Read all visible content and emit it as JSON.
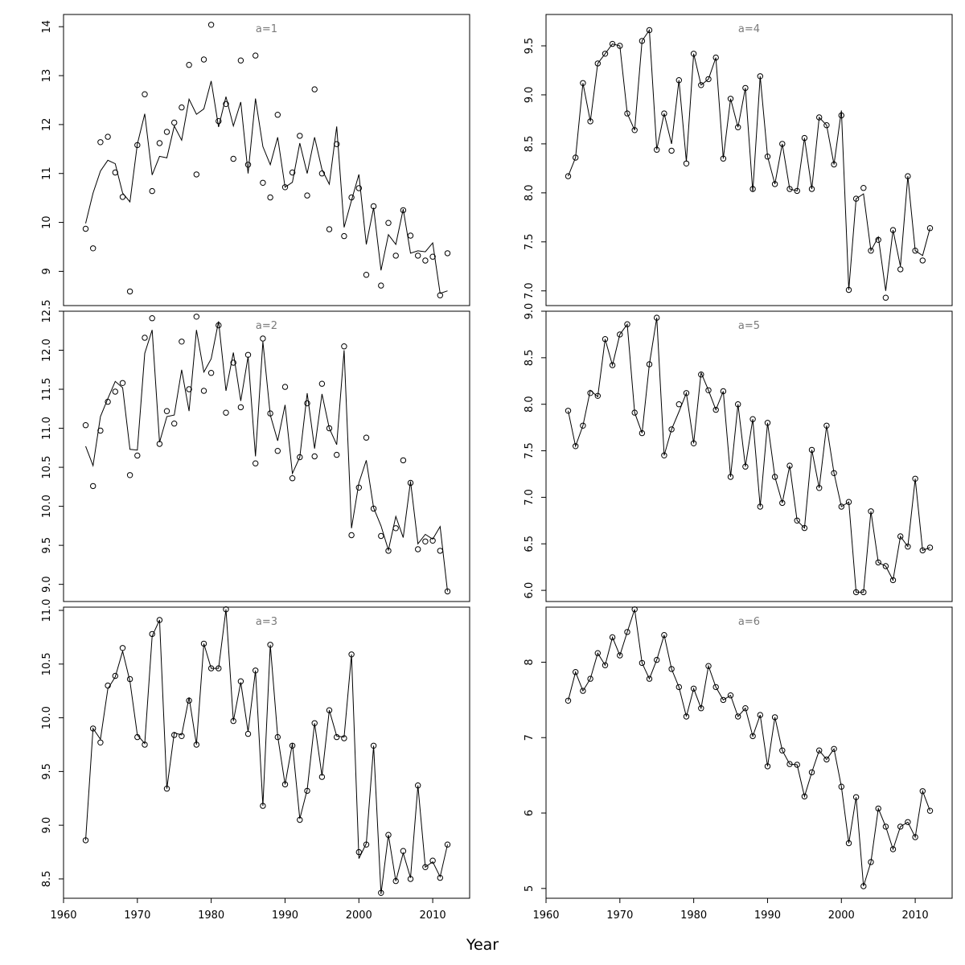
{
  "figure": {
    "xlabel": "Year"
  },
  "chart_data": [
    {
      "type": "scatter",
      "panel_label": "a=1",
      "xlabel": "Year",
      "xlim": [
        1960,
        2015
      ],
      "xticks": [
        1960,
        1970,
        1980,
        1990,
        2000,
        2010
      ],
      "ylim": [
        8.3,
        14.25
      ],
      "yticks": [
        9,
        10,
        11,
        12,
        13,
        14
      ],
      "x": [
        1963,
        1964,
        1965,
        1966,
        1967,
        1968,
        1969,
        1970,
        1971,
        1972,
        1973,
        1974,
        1975,
        1976,
        1977,
        1978,
        1979,
        1980,
        1981,
        1982,
        1983,
        1984,
        1985,
        1986,
        1987,
        1988,
        1989,
        1990,
        1991,
        1992,
        1993,
        1994,
        1995,
        1996,
        1997,
        1998,
        1999,
        2000,
        2001,
        2002,
        2003,
        2004,
        2005,
        2006,
        2007,
        2008,
        2009,
        2010,
        2011,
        2012
      ],
      "series": [
        {
          "marker": "circle",
          "values": [
            9.87,
            9.47,
            11.64,
            11.75,
            11.02,
            10.52,
            8.59,
            11.58,
            12.62,
            10.64,
            11.62,
            11.85,
            12.04,
            12.35,
            13.22,
            10.98,
            13.33,
            14.04,
            12.07,
            12.42,
            11.3,
            13.31,
            11.18,
            13.41,
            10.81,
            10.51,
            12.2,
            10.72,
            11.02,
            11.77,
            10.55,
            12.72,
            11.0,
            9.86,
            11.6,
            9.72,
            10.51,
            10.7,
            8.93,
            10.33,
            8.71,
            9.99,
            9.32,
            10.25,
            9.73,
            9.32,
            9.22,
            9.3,
            8.51,
            9.37
          ]
        },
        {
          "marker": "line",
          "values": [
            9.98,
            10.6,
            11.05,
            11.27,
            11.2,
            10.6,
            10.42,
            11.6,
            12.22,
            10.97,
            11.35,
            11.32,
            11.97,
            11.68,
            12.52,
            12.21,
            12.32,
            12.89,
            11.95,
            12.57,
            11.97,
            12.46,
            11.0,
            12.53,
            11.55,
            11.18,
            11.74,
            10.72,
            10.82,
            11.62,
            11.0,
            11.74,
            11.08,
            10.78,
            11.96,
            9.9,
            10.45,
            10.98,
            9.55,
            10.3,
            9.02,
            9.75,
            9.55,
            10.27,
            9.37,
            9.42,
            9.4,
            9.58,
            8.55,
            8.6
          ]
        }
      ]
    },
    {
      "type": "scatter",
      "panel_label": "a=2",
      "xlabel": "Year",
      "xlim": [
        1960,
        2015
      ],
      "xticks": [
        1960,
        1970,
        1980,
        1990,
        2000,
        2010
      ],
      "ylim": [
        8.78,
        12.5
      ],
      "yticks": [
        9.0,
        9.5,
        10.0,
        10.5,
        11.0,
        11.5,
        12.0,
        12.5
      ],
      "x": [
        1963,
        1964,
        1965,
        1966,
        1967,
        1968,
        1969,
        1970,
        1971,
        1972,
        1973,
        1974,
        1975,
        1976,
        1977,
        1978,
        1979,
        1980,
        1981,
        1982,
        1983,
        1984,
        1985,
        1986,
        1987,
        1988,
        1989,
        1990,
        1991,
        1992,
        1993,
        1994,
        1995,
        1996,
        1997,
        1998,
        1999,
        2000,
        2001,
        2002,
        2003,
        2004,
        2005,
        2006,
        2007,
        2008,
        2009,
        2010,
        2011,
        2012
      ],
      "series": [
        {
          "marker": "circle",
          "values": [
            11.04,
            10.26,
            10.97,
            11.34,
            11.47,
            11.58,
            10.4,
            10.65,
            12.16,
            12.41,
            10.8,
            11.22,
            11.06,
            12.11,
            11.5,
            12.43,
            11.48,
            11.71,
            12.32,
            11.2,
            11.84,
            11.27,
            11.94,
            10.55,
            12.15,
            11.19,
            10.71,
            11.53,
            10.36,
            10.63,
            11.32,
            10.64,
            11.57,
            11.0,
            10.66,
            12.05,
            9.63,
            10.24,
            10.88,
            9.97,
            9.62,
            9.43,
            9.72,
            10.59,
            10.3,
            9.45,
            9.55,
            9.56,
            9.43,
            8.91
          ]
        },
        {
          "marker": "line",
          "values": [
            10.77,
            10.52,
            11.15,
            11.38,
            11.6,
            11.52,
            10.73,
            10.72,
            11.96,
            12.26,
            10.82,
            11.15,
            11.17,
            11.75,
            11.22,
            12.26,
            11.72,
            11.89,
            12.37,
            11.48,
            11.97,
            11.35,
            11.92,
            10.64,
            12.11,
            11.17,
            10.84,
            11.3,
            10.42,
            10.63,
            11.45,
            10.74,
            11.44,
            11.0,
            10.79,
            12.0,
            9.72,
            10.3,
            10.59,
            9.98,
            9.75,
            9.44,
            9.87,
            9.6,
            10.32,
            9.52,
            9.64,
            9.58,
            9.74,
            8.91
          ]
        }
      ]
    },
    {
      "type": "scatter",
      "panel_label": "a=3",
      "xlabel": "Year",
      "xlim": [
        1960,
        2015
      ],
      "xticks": [
        1960,
        1970,
        1980,
        1990,
        2000,
        2010
      ],
      "ylim": [
        8.32,
        11.03
      ],
      "yticks": [
        8.5,
        9.0,
        9.5,
        10.0,
        10.5,
        11.0
      ],
      "x": [
        1963,
        1964,
        1965,
        1966,
        1967,
        1968,
        1969,
        1970,
        1971,
        1972,
        1973,
        1974,
        1975,
        1976,
        1977,
        1978,
        1979,
        1980,
        1981,
        1982,
        1983,
        1984,
        1985,
        1986,
        1987,
        1988,
        1989,
        1990,
        1991,
        1992,
        1993,
        1994,
        1995,
        1996,
        1997,
        1998,
        1999,
        2000,
        2001,
        2002,
        2003,
        2004,
        2005,
        2006,
        2007,
        2008,
        2009,
        2010,
        2011,
        2012
      ],
      "series": [
        {
          "marker": "circle",
          "values": [
            8.86,
            9.9,
            9.77,
            10.3,
            10.39,
            10.65,
            10.36,
            9.82,
            9.75,
            10.78,
            10.91,
            9.34,
            9.84,
            9.83,
            10.16,
            9.75,
            10.69,
            10.46,
            10.46,
            11.01,
            9.97,
            10.34,
            9.85,
            10.44,
            9.18,
            10.68,
            9.82,
            9.38,
            9.74,
            9.05,
            9.32,
            9.95,
            9.45,
            10.07,
            9.82,
            9.81,
            10.59,
            8.75,
            8.82,
            9.74,
            8.37,
            8.91,
            8.48,
            8.76,
            8.5,
            9.37,
            8.61,
            8.67,
            8.51,
            8.82
          ]
        },
        {
          "marker": "line",
          "values": [
            8.86,
            9.9,
            9.8,
            10.27,
            10.38,
            10.62,
            10.34,
            9.84,
            9.76,
            10.76,
            10.91,
            9.34,
            9.86,
            9.84,
            10.19,
            9.75,
            10.69,
            10.46,
            10.46,
            11.01,
            9.97,
            10.33,
            9.87,
            10.44,
            9.18,
            10.68,
            9.83,
            9.38,
            9.76,
            9.06,
            9.33,
            9.95,
            9.46,
            10.07,
            9.83,
            9.82,
            10.59,
            8.69,
            8.83,
            9.74,
            8.36,
            8.91,
            8.48,
            8.74,
            8.51,
            9.37,
            8.61,
            8.66,
            8.52,
            8.82
          ]
        }
      ]
    },
    {
      "type": "scatter",
      "panel_label": "a=4",
      "xlabel": "Year",
      "xlim": [
        1960,
        2015
      ],
      "xticks": [
        1960,
        1970,
        1980,
        1990,
        2000,
        2010
      ],
      "ylim": [
        6.85,
        9.82
      ],
      "yticks": [
        7.0,
        7.5,
        8.0,
        8.5,
        9.0,
        9.5
      ],
      "x": [
        1963,
        1964,
        1965,
        1966,
        1967,
        1968,
        1969,
        1970,
        1971,
        1972,
        1973,
        1974,
        1975,
        1976,
        1977,
        1978,
        1979,
        1980,
        1981,
        1982,
        1983,
        1984,
        1985,
        1986,
        1987,
        1988,
        1989,
        1990,
        1991,
        1992,
        1993,
        1994,
        1995,
        1996,
        1997,
        1998,
        1999,
        2000,
        2001,
        2002,
        2003,
        2004,
        2005,
        2006,
        2007,
        2008,
        2009,
        2010,
        2011,
        2012
      ],
      "series": [
        {
          "marker": "circle",
          "values": [
            8.17,
            8.36,
            9.12,
            8.73,
            9.32,
            9.42,
            9.52,
            9.5,
            8.81,
            8.64,
            9.55,
            9.66,
            8.44,
            8.81,
            8.43,
            9.15,
            8.3,
            9.42,
            9.1,
            9.16,
            9.38,
            8.35,
            8.96,
            8.67,
            9.07,
            8.04,
            9.19,
            8.37,
            8.09,
            8.5,
            8.04,
            8.02,
            8.56,
            8.04,
            8.77,
            8.69,
            8.29,
            8.79,
            7.01,
            7.94,
            8.05,
            7.41,
            7.52,
            6.93,
            7.62,
            7.22,
            8.17,
            7.41,
            7.31,
            7.64
          ]
        },
        {
          "marker": "line",
          "values": [
            8.17,
            8.36,
            9.12,
            8.73,
            9.32,
            9.42,
            9.52,
            9.5,
            8.81,
            8.64,
            9.55,
            9.66,
            8.44,
            8.81,
            8.5,
            9.15,
            8.32,
            9.42,
            9.1,
            9.16,
            9.38,
            8.35,
            8.96,
            8.67,
            9.07,
            8.01,
            9.19,
            8.37,
            8.09,
            8.5,
            8.04,
            8.02,
            8.56,
            8.04,
            8.77,
            8.69,
            8.29,
            8.84,
            7.01,
            7.94,
            7.99,
            7.41,
            7.55,
            7.0,
            7.62,
            7.25,
            8.17,
            7.41,
            7.36,
            7.64
          ]
        }
      ]
    },
    {
      "type": "scatter",
      "panel_label": "a=5",
      "xlabel": "Year",
      "xlim": [
        1960,
        2015
      ],
      "xticks": [
        1960,
        1970,
        1980,
        1990,
        2000,
        2010
      ],
      "ylim": [
        5.88,
        9.0
      ],
      "yticks": [
        6.0,
        6.5,
        7.0,
        7.5,
        8.0,
        8.5,
        9.0
      ],
      "x": [
        1963,
        1964,
        1965,
        1966,
        1967,
        1968,
        1969,
        1970,
        1971,
        1972,
        1973,
        1974,
        1975,
        1976,
        1977,
        1978,
        1979,
        1980,
        1981,
        1982,
        1983,
        1984,
        1985,
        1986,
        1987,
        1988,
        1989,
        1990,
        1991,
        1992,
        1993,
        1994,
        1995,
        1996,
        1997,
        1998,
        1999,
        2000,
        2001,
        2002,
        2003,
        2004,
        2005,
        2006,
        2007,
        2008,
        2009,
        2010,
        2011,
        2012
      ],
      "series": [
        {
          "marker": "circle",
          "values": [
            7.93,
            7.55,
            7.77,
            8.12,
            8.09,
            8.7,
            8.42,
            8.75,
            8.86,
            7.91,
            7.69,
            8.43,
            8.93,
            7.45,
            7.73,
            8.0,
            8.12,
            7.58,
            8.32,
            8.15,
            7.94,
            8.14,
            7.22,
            8.0,
            7.33,
            7.84,
            6.9,
            7.8,
            7.22,
            6.94,
            7.34,
            6.75,
            6.67,
            7.51,
            7.1,
            7.77,
            7.26,
            6.9,
            6.95,
            5.98,
            5.98,
            6.85,
            6.3,
            6.26,
            6.11,
            6.58,
            6.47,
            7.2,
            6.43,
            6.46
          ]
        },
        {
          "marker": "line",
          "values": [
            7.93,
            7.55,
            7.77,
            8.15,
            8.08,
            8.7,
            8.42,
            8.75,
            8.86,
            7.91,
            7.69,
            8.43,
            8.93,
            7.45,
            7.73,
            7.92,
            8.12,
            7.58,
            8.34,
            8.15,
            7.94,
            8.14,
            7.22,
            8.0,
            7.33,
            7.84,
            6.9,
            7.8,
            7.22,
            6.94,
            7.34,
            6.75,
            6.67,
            7.51,
            7.1,
            7.77,
            7.26,
            6.9,
            6.95,
            5.98,
            5.98,
            6.85,
            6.3,
            6.26,
            6.11,
            6.58,
            6.47,
            7.2,
            6.43,
            6.46
          ]
        }
      ]
    },
    {
      "type": "scatter",
      "panel_label": "a=6",
      "xlabel": "Year",
      "xlim": [
        1960,
        2015
      ],
      "xticks": [
        1960,
        1970,
        1980,
        1990,
        2000,
        2010
      ],
      "ylim": [
        4.87,
        8.73
      ],
      "yticks": [
        5,
        6,
        7,
        8
      ],
      "x": [
        1963,
        1964,
        1965,
        1966,
        1967,
        1968,
        1969,
        1970,
        1971,
        1972,
        1973,
        1974,
        1975,
        1976,
        1977,
        1978,
        1979,
        1980,
        1981,
        1982,
        1983,
        1984,
        1985,
        1986,
        1987,
        1988,
        1989,
        1990,
        1991,
        1992,
        1993,
        1994,
        1995,
        1996,
        1997,
        1998,
        1999,
        2000,
        2001,
        2002,
        2003,
        2004,
        2005,
        2006,
        2007,
        2008,
        2009,
        2010,
        2011,
        2012
      ],
      "series": [
        {
          "marker": "circle",
          "values": [
            7.49,
            7.87,
            7.62,
            7.78,
            8.12,
            7.96,
            8.33,
            8.09,
            8.4,
            8.7,
            7.99,
            7.78,
            8.03,
            8.36,
            7.91,
            7.67,
            7.28,
            7.65,
            7.39,
            7.95,
            7.67,
            7.5,
            7.56,
            7.28,
            7.39,
            7.02,
            7.3,
            6.62,
            7.27,
            6.83,
            6.65,
            6.64,
            6.22,
            6.54,
            6.83,
            6.71,
            6.85,
            6.35,
            5.6,
            6.21,
            5.03,
            5.35,
            6.06,
            5.82,
            5.52,
            5.82,
            5.88,
            5.68,
            6.29,
            6.03
          ]
        },
        {
          "marker": "line",
          "values": [
            7.49,
            7.87,
            7.62,
            7.78,
            8.12,
            7.96,
            8.33,
            8.09,
            8.4,
            8.7,
            7.99,
            7.78,
            8.03,
            8.36,
            7.91,
            7.67,
            7.28,
            7.65,
            7.39,
            7.95,
            7.67,
            7.5,
            7.56,
            7.28,
            7.39,
            7.02,
            7.3,
            6.62,
            7.27,
            6.83,
            6.65,
            6.64,
            6.22,
            6.54,
            6.83,
            6.71,
            6.85,
            6.35,
            5.6,
            6.21,
            5.03,
            5.35,
            6.06,
            5.82,
            5.52,
            5.82,
            5.88,
            5.68,
            6.29,
            6.03
          ]
        }
      ]
    }
  ]
}
